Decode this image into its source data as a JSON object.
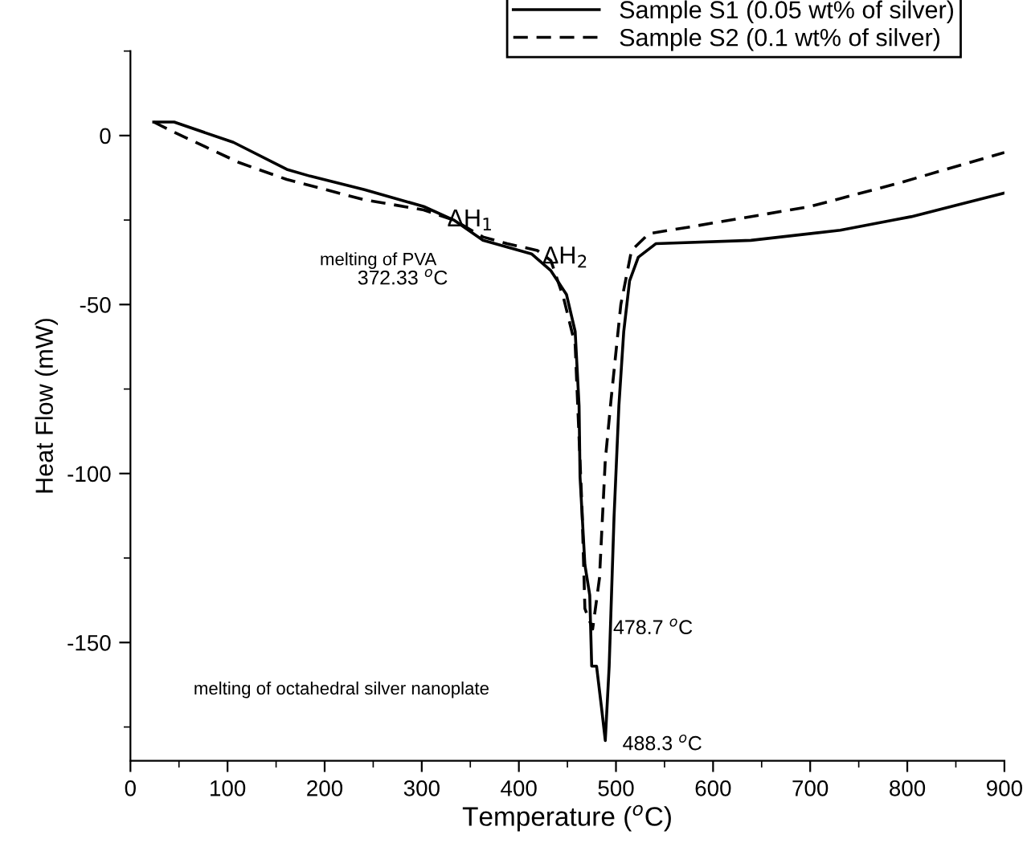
{
  "chart_data": {
    "type": "line",
    "xlabel": "Temperature ($^{o}$C)",
    "ylabel": "Heat Flow (mW)",
    "xlim": [
      0,
      900
    ],
    "ylim": [
      -185,
      25
    ],
    "xticks": [
      0,
      {
        "value": 50,
        "label": null
      },
      100,
      {
        "value": 150,
        "label": null
      },
      200,
      {
        "value": 250,
        "label": null
      },
      300,
      {
        "value": 350,
        "label": null
      },
      400,
      {
        "value": 450,
        "label": null
      },
      500,
      {
        "value": 550,
        "label": null
      },
      600,
      {
        "value": 650,
        "label": null
      },
      700,
      {
        "value": 750,
        "label": null
      },
      800,
      {
        "value": 850,
        "label": null
      },
      900
    ],
    "yticks": [
      {
        "value": 25,
        "label": null
      },
      0,
      {
        "value": -25,
        "label": null
      },
      -50,
      {
        "value": -75,
        "label": null
      },
      -100,
      {
        "value": -125,
        "label": null
      },
      -150,
      {
        "value": -175,
        "label": null
      }
    ],
    "legend": "top right",
    "grid": false,
    "marker": "none",
    "series": [
      {
        "name": "Sample S1 (0.05 wt% of silver)",
        "color": "#000000",
        "line_style": "solid",
        "x": [
          24,
          45,
          106,
          161,
          185,
          241,
          302,
          333,
          363,
          388,
          413,
          433,
          449,
          458,
          462,
          463,
          468,
          473,
          475,
          480,
          485,
          489,
          493,
          498,
          503,
          508,
          514,
          523,
          541,
          639,
          731,
          786,
          804,
          900
        ],
        "values": [
          4,
          4,
          -2,
          -10,
          -12,
          -16,
          -21,
          -25,
          -31,
          -33,
          -35,
          -40,
          -47,
          -58,
          -80,
          -101,
          -127,
          -136,
          -157,
          -157,
          -169,
          -179,
          -157,
          -113,
          -80,
          -58,
          -43,
          -36,
          -32,
          -31,
          -28,
          -25,
          -24,
          -17
        ]
      },
      {
        "name": "Sample S2 (0.1 wt% of silver)",
        "color": "#000000",
        "line_style": "dashed",
        "x": [
          24,
          45,
          112,
          161,
          241,
          302,
          333,
          363,
          388,
          419,
          433,
          446,
          458,
          465,
          468,
          476,
          483,
          489,
          495,
          505,
          516,
          534,
          577,
          700,
          792,
          900
        ],
        "values": [
          4,
          1,
          -8,
          -13,
          -19,
          -22,
          -25,
          -30,
          -32,
          -34,
          -37,
          -48,
          -62,
          -110,
          -140,
          -146,
          -131,
          -96,
          -78,
          -50,
          -34,
          -29,
          -27,
          -21,
          -14,
          -5
        ]
      }
    ],
    "annotations": [
      "ΔH$_{1}$",
      "ΔH$_{2}$",
      "melting of PVA",
      "melting of octahedral silver nanoplate",
      {
        "text": "372.33 $^{o}$C",
        "x": 372.33,
        "y": -32
      },
      {
        "text": "478.7 $^{o}$C",
        "x": 478.7,
        "y": -146
      },
      {
        "text": "488.3 $^{o}$C",
        "x": 488.3,
        "y": -179
      }
    ]
  }
}
